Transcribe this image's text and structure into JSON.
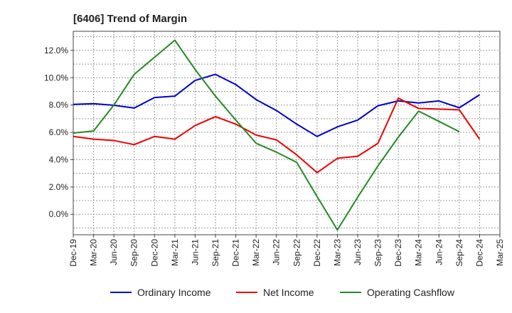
{
  "chart_data": {
    "type": "line",
    "title": "[6406]  Trend of Margin",
    "xlabel": "",
    "ylabel": "",
    "categories": [
      "Dec-19",
      "Mar-20",
      "Jun-20",
      "Sep-20",
      "Dec-20",
      "Mar-21",
      "Jun-21",
      "Sep-21",
      "Dec-21",
      "Mar-22",
      "Jun-22",
      "Sep-22",
      "Dec-22",
      "Mar-23",
      "Jun-23",
      "Sep-23",
      "Dec-23",
      "Mar-24",
      "Jun-24",
      "Sep-24",
      "Dec-24",
      "Mar-25"
    ],
    "ylim": [
      -1.5,
      13.4
    ],
    "yticks": [
      0,
      2,
      4,
      6,
      8,
      10,
      12
    ],
    "ytick_labels": [
      "0.0%",
      "2.0%",
      "4.0%",
      "6.0%",
      "8.0%",
      "10.0%",
      "12.0%"
    ],
    "grid": true,
    "legend_position": "bottom",
    "series": [
      {
        "name": "Ordinary Income",
        "color": "#0000cc",
        "values": [
          8.05,
          8.1,
          7.98,
          7.78,
          8.55,
          8.65,
          9.8,
          10.25,
          9.5,
          8.4,
          7.6,
          6.6,
          5.7,
          6.4,
          6.9,
          7.95,
          8.3,
          8.15,
          8.3,
          7.8,
          8.75,
          null
        ]
      },
      {
        "name": "Net Income",
        "color": "#ee0000",
        "values": [
          5.7,
          5.5,
          5.4,
          5.1,
          5.7,
          5.5,
          6.5,
          7.15,
          6.6,
          5.8,
          5.45,
          4.35,
          3.05,
          4.1,
          4.25,
          5.2,
          8.5,
          7.75,
          7.7,
          7.65,
          5.5,
          null
        ]
      },
      {
        "name": "Operating Cashflow",
        "color": "#228b22",
        "values": [
          5.95,
          6.1,
          8.0,
          10.25,
          11.5,
          12.75,
          10.6,
          8.65,
          6.9,
          5.2,
          4.55,
          3.8,
          1.3,
          -1.15,
          1.25,
          3.55,
          5.65,
          7.55,
          6.8,
          6.05,
          null,
          null
        ]
      }
    ]
  }
}
